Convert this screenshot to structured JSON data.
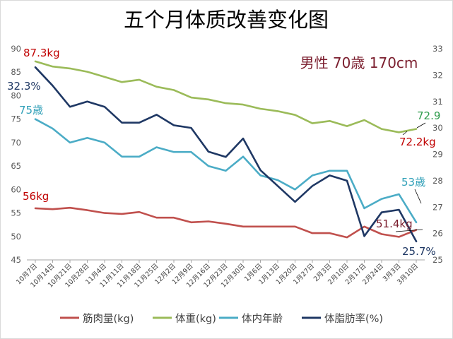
{
  "chart_data": {
    "type": "line",
    "title": "五个月体质改善变化图",
    "subtitle": "男性 70歳 170cm",
    "categories": [
      "10月7日",
      "10月14日",
      "10月21日",
      "10月28日",
      "11月4日",
      "11月11日",
      "11月18日",
      "11月25日",
      "12月2日",
      "12月9日",
      "12月16日",
      "12月23日",
      "12月30日",
      "1月6日",
      "1月13日",
      "1月20日",
      "1月27日",
      "2月3日",
      "2月10日",
      "2月17日",
      "2月24日",
      "3月3日",
      "3月10日"
    ],
    "left_axis": {
      "ylim": [
        45,
        90
      ],
      "ticks": [
        45,
        50,
        55,
        60,
        65,
        70,
        75,
        80,
        85,
        90
      ]
    },
    "right_axis": {
      "ylim": [
        25,
        33
      ],
      "ticks": [
        25,
        26,
        27,
        28,
        29,
        30,
        31,
        32,
        33
      ]
    },
    "series": [
      {
        "name": "筋肉量(kg)",
        "axis": "left",
        "color": "#c0504d",
        "values": [
          56.0,
          55.8,
          56.1,
          55.6,
          55.0,
          54.8,
          55.2,
          54.0,
          54.0,
          53.0,
          53.2,
          52.7,
          52.1,
          52.1,
          52.1,
          52.1,
          50.7,
          50.7,
          49.8,
          52.1,
          50.5,
          49.9,
          51.4
        ]
      },
      {
        "name": "体重(kg)",
        "axis": "left",
        "color": "#9bbb59",
        "values": [
          87.3,
          86.2,
          85.8,
          85.1,
          84.0,
          82.9,
          83.4,
          81.9,
          81.2,
          79.6,
          79.2,
          78.4,
          78.1,
          77.2,
          76.7,
          75.9,
          74.1,
          74.6,
          73.5,
          74.8,
          72.9,
          72.2,
          72.9
        ]
      },
      {
        "name": "体内年齢",
        "axis": "left",
        "color": "#4bacc6",
        "values": [
          75,
          73,
          70,
          71,
          70,
          67,
          67,
          69,
          68,
          68,
          65,
          64,
          67,
          63,
          62,
          60,
          63,
          64,
          64,
          56,
          58,
          59,
          53
        ]
      },
      {
        "name": "体脂肪率(%)",
        "axis": "right",
        "color": "#1f3864",
        "values": [
          32.3,
          31.6,
          30.8,
          31.0,
          30.8,
          30.2,
          30.2,
          30.5,
          30.1,
          30.0,
          29.1,
          28.9,
          29.6,
          28.4,
          27.8,
          27.2,
          27.8,
          28.2,
          28.0,
          25.9,
          26.8,
          26.9,
          25.7
        ]
      }
    ],
    "annotations": {
      "weight_start": "87.3kg",
      "weight_end_top": "72.9",
      "weight_end_bottom": "72.2kg",
      "bodyfat_start": "32.3%",
      "bodyfat_end": "25.7%",
      "age_start": "75歳",
      "age_end": "53歳",
      "muscle_start": "56kg",
      "muscle_end": "51.4kg"
    },
    "legend_position": "bottom",
    "grid": false
  }
}
